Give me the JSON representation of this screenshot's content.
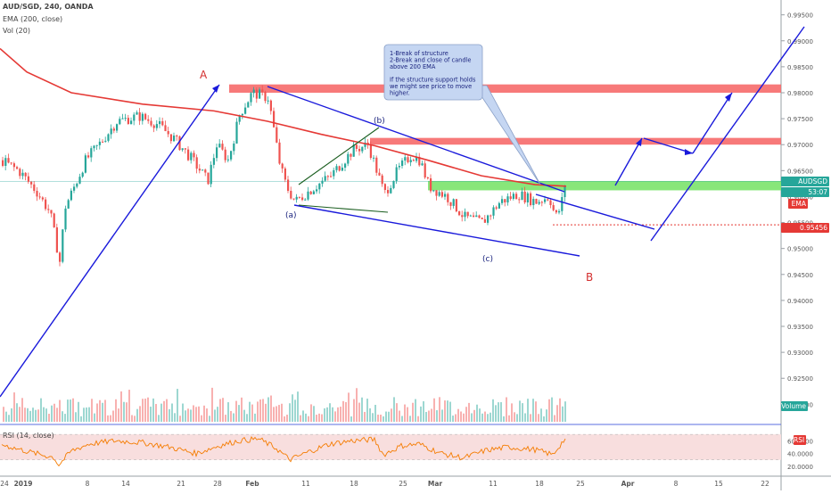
{
  "header": {
    "symbol": "AUD/SGD, 240, OANDA",
    "ema_label": "EMA (200, close)",
    "vol_label": "Vol (20)",
    "rsi_label": "RSI (14, close)"
  },
  "price_axis": {
    "ticks": [
      "0.99500",
      "0.99000",
      "0.98500",
      "0.98000",
      "0.97500",
      "0.97000",
      "0.96500",
      "0.96000",
      "0.95500",
      "0.95000",
      "0.94500",
      "0.94000",
      "0.93500",
      "0.93000",
      "0.92500",
      "0.92000"
    ],
    "last_price_symbol": "AUDSGD",
    "last_price": "0.96293",
    "countdown": "53:07",
    "ema_tag": "EMA",
    "support_price": "0.95456",
    "volume_tag": "Volume"
  },
  "rsi_axis": {
    "ticks": [
      "60.0000",
      "40.0000",
      "20.0000"
    ],
    "tag": "RSI"
  },
  "time_axis": {
    "ticks": [
      "24",
      "2019",
      "8",
      "14",
      "21",
      "28",
      "Feb",
      "11",
      "18",
      "25",
      "Mar",
      "11",
      "18",
      "25",
      "Apr",
      "8",
      "15",
      "22"
    ]
  },
  "annotations": {
    "wave_A": "A",
    "wave_B": "B",
    "wave_a": "(a)",
    "wave_b": "(b)",
    "wave_c": "(c)",
    "callout_lines": [
      "1-Break of structure",
      "2-Break and close of candle",
      "above 200 EMA",
      "",
      "If the structure support holds",
      "we might see price to move",
      "higher."
    ]
  },
  "colors": {
    "up_candle": "#26a69a",
    "down_candle": "#ef5350",
    "ema": "#e53935",
    "trend_lines": "#1a1adb",
    "resistance_zone": "#f66a6a",
    "support_zone": "#7be36b",
    "rsi_band": "#f8dede",
    "rsi_line": "#f57c00",
    "callout_bg": "#c5d6f2",
    "wave_label": "#d32f2f"
  },
  "chart_data": {
    "type": "candlestick",
    "symbol": "AUD/SGD",
    "timeframe": "240",
    "ylim": [
      0.918,
      0.997
    ],
    "ema_200": [
      [
        0,
        0.9885
      ],
      [
        30,
        0.984
      ],
      [
        80,
        0.98
      ],
      [
        160,
        0.9778
      ],
      [
        240,
        0.9765
      ],
      [
        300,
        0.9745
      ],
      [
        360,
        0.972
      ],
      [
        420,
        0.9698
      ],
      [
        480,
        0.967
      ],
      [
        540,
        0.964
      ],
      [
        600,
        0.9623
      ],
      [
        635,
        0.962
      ]
    ],
    "price_path": [
      [
        0,
        0.967
      ],
      [
        20,
        0.965
      ],
      [
        40,
        0.961
      ],
      [
        55,
        0.957
      ],
      [
        66,
        0.9475
      ],
      [
        72,
        0.958
      ],
      [
        80,
        0.961
      ],
      [
        95,
        0.967
      ],
      [
        110,
        0.97
      ],
      [
        130,
        0.9745
      ],
      [
        155,
        0.9755
      ],
      [
        175,
        0.974
      ],
      [
        195,
        0.971
      ],
      [
        215,
        0.967
      ],
      [
        232,
        0.963
      ],
      [
        242,
        0.97
      ],
      [
        255,
        0.967
      ],
      [
        268,
        0.976
      ],
      [
        282,
        0.98
      ],
      [
        300,
        0.979
      ],
      [
        313,
        0.966
      ],
      [
        320,
        0.962
      ],
      [
        330,
        0.959
      ],
      [
        345,
        0.961
      ],
      [
        370,
        0.964
      ],
      [
        395,
        0.969
      ],
      [
        412,
        0.97
      ],
      [
        430,
        0.9605
      ],
      [
        445,
        0.965
      ],
      [
        460,
        0.968
      ],
      [
        470,
        0.967
      ],
      [
        480,
        0.962
      ],
      [
        500,
        0.96
      ],
      [
        520,
        0.956
      ],
      [
        540,
        0.955
      ],
      [
        560,
        0.959
      ],
      [
        580,
        0.9605
      ],
      [
        600,
        0.959
      ],
      [
        615,
        0.96
      ],
      [
        622,
        0.956
      ],
      [
        628,
        0.958
      ],
      [
        633,
        0.963
      ]
    ],
    "rsi": [
      [
        0,
        55
      ],
      [
        20,
        47
      ],
      [
        40,
        40
      ],
      [
        60,
        34
      ],
      [
        66,
        22
      ],
      [
        80,
        44
      ],
      [
        100,
        55
      ],
      [
        130,
        60
      ],
      [
        160,
        57
      ],
      [
        190,
        50
      ],
      [
        220,
        40
      ],
      [
        245,
        52
      ],
      [
        268,
        60
      ],
      [
        290,
        63
      ],
      [
        310,
        48
      ],
      [
        325,
        30
      ],
      [
        345,
        42
      ],
      [
        370,
        55
      ],
      [
        395,
        60
      ],
      [
        420,
        62
      ],
      [
        430,
        38
      ],
      [
        450,
        52
      ],
      [
        470,
        55
      ],
      [
        495,
        40
      ],
      [
        520,
        33
      ],
      [
        545,
        45
      ],
      [
        570,
        50
      ],
      [
        600,
        46
      ],
      [
        620,
        38
      ],
      [
        633,
        62
      ]
    ],
    "levels": {
      "last_price": 0.96293,
      "support": 0.95456,
      "resistance_zone": [
        0.98,
        0.9816
      ],
      "minor_resistance_zone": [
        0.97,
        0.9713
      ],
      "support_zone": [
        0.9612,
        0.963
      ]
    },
    "rsi_levels": [
      70,
      30
    ]
  }
}
